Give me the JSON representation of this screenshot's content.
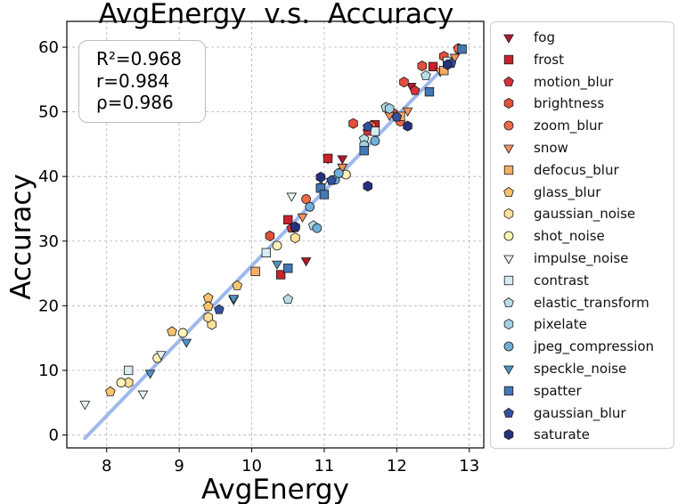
{
  "chart_data": {
    "type": "scatter",
    "title": "AvgEnergy  v.s.  Accuracy",
    "xlabel": "AvgEnergy",
    "ylabel": "Accuracy",
    "xlim": [
      7.45,
      13.2
    ],
    "ylim": [
      -2,
      64
    ],
    "xticks": [
      "8",
      "9",
      "10",
      "11",
      "12",
      "13"
    ],
    "yticks": [
      "0",
      "10",
      "20",
      "30",
      "40",
      "50",
      "60"
    ],
    "grid": true,
    "legend_position": "outside-right",
    "stats": [
      "R²=0.968",
      "r=0.984",
      "ρ=0.986"
    ],
    "fit_line": {
      "x": [
        7.7,
        12.9
      ],
      "y": [
        -0.5,
        59.8
      ],
      "color": "#9fb8ec"
    },
    "series": [
      {
        "name": "fog",
        "marker": "triangle-down",
        "color": "#b2182b",
        "x": [
          10.75,
          11.05,
          11.25,
          11.25,
          12.2,
          12.85
        ],
        "y": [
          27.0,
          42.8,
          42.8,
          41.5,
          54.0,
          59.5
        ]
      },
      {
        "name": "frost",
        "marker": "square",
        "color": "#c8232c",
        "x": [
          10.4,
          10.5,
          11.05,
          11.7,
          12.5
        ],
        "y": [
          24.8,
          33.3,
          42.8,
          48.0,
          57.0
        ]
      },
      {
        "name": "motion_blur",
        "marker": "pentagon",
        "color": "#d6303a",
        "x": [
          10.55,
          11.2,
          11.6,
          12.25,
          12.85
        ],
        "y": [
          32.0,
          40.5,
          47.0,
          53.3,
          59.8
        ]
      },
      {
        "name": "brightness",
        "marker": "hexagon",
        "color": "#e0503b",
        "x": [
          10.25,
          11.4,
          11.95,
          12.1,
          12.35,
          12.65
        ],
        "y": [
          30.8,
          48.2,
          49.8,
          54.6,
          57.1,
          58.6
        ]
      },
      {
        "name": "zoom_blur",
        "marker": "circle",
        "color": "#ef6a46",
        "x": [
          10.75,
          11.65,
          12.05,
          12.85
        ],
        "y": [
          36.5,
          47.8,
          48.5,
          59.8
        ]
      },
      {
        "name": "snow",
        "marker": "triangle-down",
        "color": "#f4915c",
        "x": [
          10.7,
          11.25,
          11.9,
          12.15,
          12.6,
          12.8
        ],
        "y": [
          33.8,
          41.5,
          49.5,
          50.2,
          56.3,
          58.5
        ]
      },
      {
        "name": "defocus_blur",
        "marker": "square",
        "color": "#f6ad63",
        "x": [
          10.05,
          12.05,
          12.65
        ],
        "y": [
          25.3,
          49.3,
          56.4
        ]
      },
      {
        "name": "glass_blur",
        "marker": "pentagon",
        "color": "#fbc36d",
        "x": [
          9.4,
          9.4,
          9.8,
          8.9,
          8.05
        ],
        "y": [
          21.2,
          19.9,
          23.1,
          16.0,
          6.7
        ]
      },
      {
        "name": "gaussian_noise",
        "marker": "hexagon",
        "color": "#fde19a",
        "x": [
          9.45,
          9.4,
          10.6,
          8.3
        ],
        "y": [
          17.1,
          18.2,
          30.5,
          8.1
        ]
      },
      {
        "name": "shot_noise",
        "marker": "circle",
        "color": "#fdf5b7",
        "x": [
          9.05,
          10.35,
          11.3,
          8.7,
          8.2
        ],
        "y": [
          15.8,
          29.3,
          40.3,
          11.9,
          8.1
        ]
      },
      {
        "name": "impulse_noise",
        "marker": "triangle-down",
        "color": "#e8f3ef",
        "x": [
          7.7,
          8.5,
          8.75,
          9.75,
          10.55,
          11.0
        ],
        "y": [
          4.8,
          6.4,
          12.5,
          21.0,
          37.0,
          39.3
        ]
      },
      {
        "name": "contrast",
        "marker": "square",
        "color": "#d6ecf1",
        "x": [
          8.3,
          10.2,
          11.7,
          12.7
        ],
        "y": [
          10.0,
          28.2,
          47.0,
          57.8
        ]
      },
      {
        "name": "elastic_transform",
        "marker": "pentagon",
        "color": "#b7dde8",
        "x": [
          10.5,
          10.85,
          11.55,
          11.85,
          12.4
        ],
        "y": [
          21.0,
          32.4,
          45.8,
          50.7,
          55.6
        ]
      },
      {
        "name": "pixelate",
        "marker": "hexagon",
        "color": "#a2d2e4",
        "x": [
          10.95,
          11.55,
          11.9
        ],
        "y": [
          38.3,
          44.8,
          50.5
        ]
      },
      {
        "name": "jpeg_compression",
        "marker": "circle",
        "color": "#6fb0d8",
        "x": [
          10.9,
          11.15,
          11.2,
          11.7,
          10.8
        ],
        "y": [
          32.0,
          39.5,
          40.5,
          45.5,
          35.3
        ]
      },
      {
        "name": "speckle_noise",
        "marker": "triangle-down",
        "color": "#4f93c6",
        "x": [
          9.1,
          8.6,
          9.75,
          10.35
        ],
        "y": [
          14.4,
          9.6,
          21.2,
          26.5
        ]
      },
      {
        "name": "spatter",
        "marker": "square",
        "color": "#4378b5",
        "x": [
          10.5,
          10.95,
          11.0,
          11.55,
          12.45,
          12.9
        ],
        "y": [
          25.8,
          38.2,
          37.2,
          44.0,
          53.1,
          59.7
        ]
      },
      {
        "name": "gaussian_blur",
        "marker": "pentagon",
        "color": "#34519e",
        "x": [
          9.55,
          10.6,
          11.1,
          11.6,
          12.75,
          12.0
        ],
        "y": [
          19.4,
          32.1,
          39.4,
          47.7,
          57.5,
          49.2
        ]
      },
      {
        "name": "saturate",
        "marker": "hexagon",
        "color": "#25307e",
        "x": [
          10.95,
          11.6,
          12.15,
          12.7,
          10.6
        ],
        "y": [
          39.9,
          38.5,
          47.8,
          57.3,
          32.2
        ]
      }
    ]
  }
}
